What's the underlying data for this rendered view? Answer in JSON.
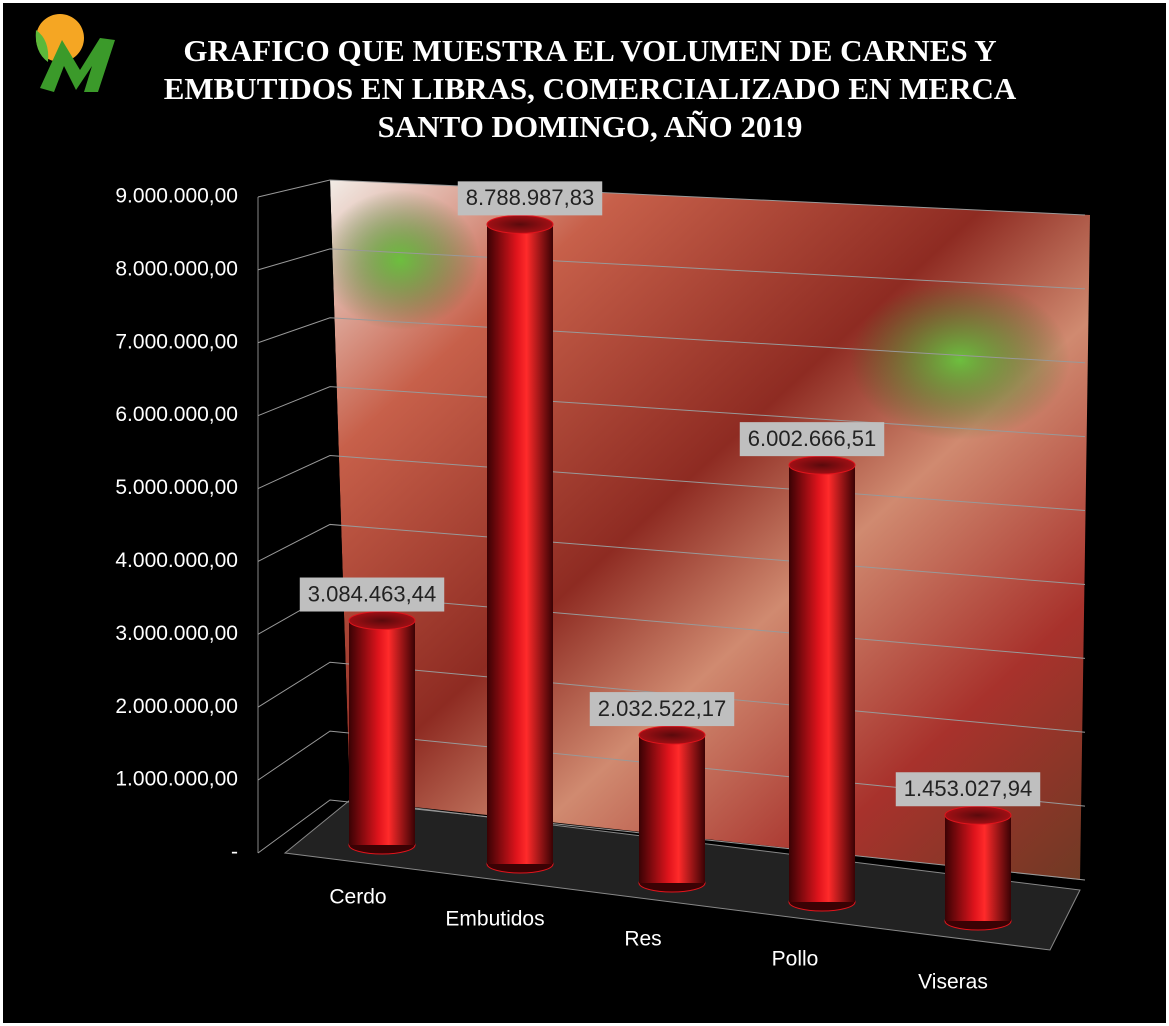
{
  "chart_data": {
    "type": "bar3d",
    "title": "GRAFICO QUE MUESTRA EL VOLUMEN DE CARNES Y EMBUTIDOS EN LIBRAS, COMERCIALIZADO EN MERCA SANTO DOMINGO, AÑO 2019",
    "categories": [
      "Cerdo",
      "Embutidos",
      "Res",
      "Pollo",
      "Viseras"
    ],
    "values": [
      3084463.44,
      8788987.83,
      2032522.17,
      6002666.51,
      1453027.94
    ],
    "value_labels": [
      "3.084.463,44",
      "8.788.987,83",
      "2.032.522,17",
      "6.002.666,51",
      "1.453.027,94"
    ],
    "color": "#e0141c",
    "ylim": [
      0,
      9000000
    ],
    "yticks": [
      {
        "value": 0,
        "label": "-"
      },
      {
        "value": 1000000,
        "label": "1.000.000,00"
      },
      {
        "value": 2000000,
        "label": "2.000.000,00"
      },
      {
        "value": 3000000,
        "label": "3.000.000,00"
      },
      {
        "value": 4000000,
        "label": "4.000.000,00"
      },
      {
        "value": 5000000,
        "label": "5.000.000,00"
      },
      {
        "value": 6000000,
        "label": "6.000.000,00"
      },
      {
        "value": 7000000,
        "label": "7.000.000,00"
      },
      {
        "value": 8000000,
        "label": "8.000.000,00"
      },
      {
        "value": 9000000,
        "label": "9.000.000,00"
      }
    ],
    "grid": true
  }
}
